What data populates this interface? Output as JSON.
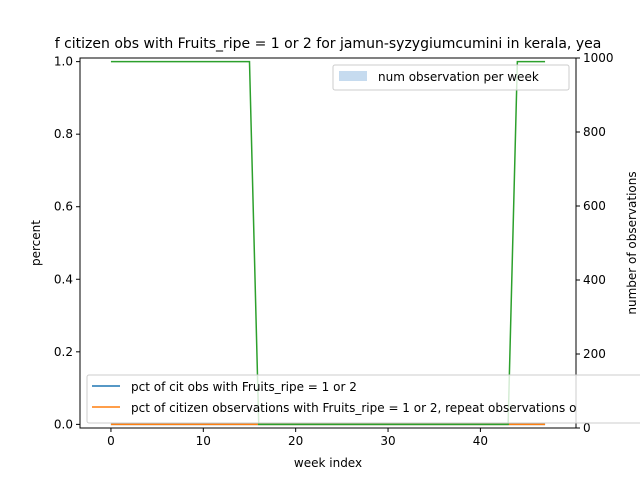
{
  "chart_data": {
    "type": "line",
    "title": "f citizen obs with Fruits_ripe = 1 or 2 for jamun-syzygiumcumini in kerala, yea",
    "xlabel": "week index",
    "ylabel": "percent",
    "ylabel_right": "number of observations",
    "xlim": [
      -3.35,
      50.35
    ],
    "ylim": [
      -0.01,
      1.01
    ],
    "ylim_right": [
      0,
      1000
    ],
    "x_ticks": [
      0,
      10,
      20,
      30,
      40
    ],
    "y_ticks": [
      0.0,
      0.2,
      0.4,
      0.6,
      0.8,
      1.0
    ],
    "y_ticks_right": [
      0,
      200,
      400,
      600,
      800,
      1000
    ],
    "x": [
      0,
      1,
      2,
      3,
      4,
      5,
      6,
      7,
      8,
      9,
      10,
      11,
      12,
      13,
      14,
      15,
      16,
      17,
      18,
      19,
      20,
      21,
      22,
      23,
      24,
      25,
      26,
      27,
      28,
      29,
      30,
      31,
      32,
      33,
      34,
      35,
      36,
      37,
      38,
      39,
      40,
      41,
      42,
      43,
      44,
      45,
      46,
      47
    ],
    "series": [
      {
        "name": "pct of cit obs with Fruits_ripe = 1 or 2",
        "color": "#1f77b4",
        "values": [
          0,
          0,
          0,
          0,
          0,
          0,
          0,
          0,
          0,
          0,
          0,
          0,
          0,
          0,
          0,
          0,
          0,
          0,
          0,
          0,
          0,
          0,
          0,
          0,
          0,
          0,
          0,
          0,
          0,
          0,
          0,
          0,
          0,
          0,
          0,
          0,
          0,
          0,
          0,
          0,
          0,
          0,
          0,
          0,
          0,
          0,
          0,
          0
        ]
      },
      {
        "name": "pct of citizen observations with Fruits_ripe = 1 or 2, repeat observations o",
        "color": "#ff7f0e",
        "values": [
          0,
          0,
          0,
          0,
          0,
          0,
          0,
          0,
          0,
          0,
          0,
          0,
          0,
          0,
          0,
          0,
          0,
          0,
          0,
          0,
          0,
          0,
          0,
          0,
          0,
          0,
          0,
          0,
          0,
          0,
          0,
          0,
          0,
          0,
          0,
          0,
          0,
          0,
          0,
          0,
          0,
          0,
          0,
          0,
          0,
          0,
          0,
          0
        ]
      },
      {
        "name": "",
        "color": "#2ca02c",
        "values": [
          1,
          1,
          1,
          1,
          1,
          1,
          1,
          1,
          1,
          1,
          1,
          1,
          1,
          1,
          1,
          1,
          0,
          0,
          0,
          0,
          0,
          0,
          0,
          0,
          0,
          0,
          0,
          0,
          0,
          0,
          0,
          0,
          0,
          0,
          0,
          0,
          0,
          0,
          0,
          0,
          0,
          0,
          0,
          0,
          1,
          1,
          1,
          1
        ]
      }
    ],
    "bar_series": {
      "name": "num observation per week",
      "color": "#c6dbef",
      "values": [
        0,
        0,
        0,
        0,
        0,
        0,
        0,
        0,
        0,
        0,
        0,
        0,
        0,
        0,
        0,
        0,
        0,
        0,
        0,
        0,
        0,
        0,
        0,
        0,
        0,
        0,
        0,
        0,
        0,
        0,
        0,
        0,
        0,
        0,
        0,
        0,
        0,
        0,
        0,
        0,
        0,
        0,
        0,
        0,
        0,
        0,
        0,
        0
      ]
    },
    "legend_top": {
      "placement": "top-right",
      "label": "num observation per week",
      "color": "#c6dbef"
    },
    "legend_bottom": {
      "placement": "lower-left",
      "entries": [
        {
          "label": "pct of cit obs with Fruits_ripe = 1 or 2",
          "color": "#1f77b4"
        },
        {
          "label": "pct of citizen observations with Fruits_ripe = 1 or 2, repeat observations o",
          "color": "#ff7f0e"
        }
      ]
    }
  }
}
